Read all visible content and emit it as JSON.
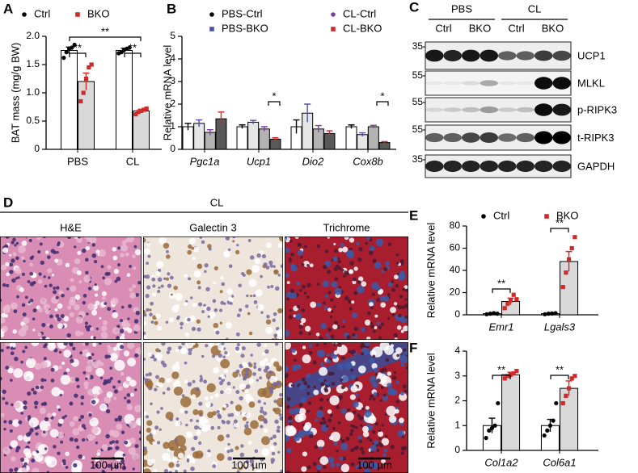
{
  "panel_labels": [
    "A",
    "B",
    "C",
    "D",
    "E",
    "F"
  ],
  "chart_data": [
    {
      "type": "bar",
      "ylabel": "BAT mass (mg/g BW)",
      "categories": [
        "PBS",
        "CL"
      ],
      "series": [
        {
          "name": "Ctrl",
          "color": "#000000",
          "bar_color": "#ffffff",
          "values": [
            1.75,
            1.75
          ],
          "errors": [
            0.06,
            0.04
          ],
          "points": [
            [
              1.62,
              1.72,
              1.78,
              1.8,
              1.85
            ],
            [
              1.7,
              1.72,
              1.76,
              1.78,
              1.8
            ]
          ]
        },
        {
          "name": "BKO",
          "color": "#d62728",
          "bar_color": "#d9d9d9",
          "values": [
            1.2,
            0.68
          ],
          "errors": [
            0.15,
            0.03
          ],
          "points": [
            [
              0.85,
              1.0,
              1.25,
              1.45,
              1.5
            ],
            [
              0.62,
              0.66,
              0.68,
              0.7,
              0.72
            ]
          ]
        }
      ],
      "ylim": [
        0,
        2
      ],
      "yticks": [
        0,
        0.5,
        {
          "value": 1,
          "label": "1.0"
        },
        1.5,
        {
          "value": 2,
          "label": "2.0"
        }
      ],
      "annotations": [
        "**",
        "**",
        "**"
      ]
    },
    {
      "type": "bar",
      "ylabel": "Relative mRNA level",
      "categories": [
        "Pgc1a",
        "Ucp1",
        "Dio2",
        "Cox8b"
      ],
      "series": [
        {
          "name": "PBS-Ctrl",
          "color": "#000000",
          "bar_color": "#ffffff",
          "values": [
            1.0,
            1.0,
            1.0,
            1.0
          ],
          "errors": [
            0.15,
            0.08,
            0.3,
            0.08
          ]
        },
        {
          "name": "PBS-BKO",
          "color": "#4b4fa8",
          "bar_color": "#e6e6e6",
          "values": [
            1.15,
            1.2,
            1.6,
            0.65
          ],
          "errors": [
            0.15,
            0.08,
            0.4,
            0.08
          ]
        },
        {
          "name": "CL-Ctrl",
          "color": "#7b3fa0",
          "bar_color": "#b3b3b3",
          "values": [
            0.75,
            0.9,
            0.9,
            1.0
          ],
          "errors": [
            0.12,
            0.1,
            0.15,
            0.06
          ]
        },
        {
          "name": "CL-BKO",
          "color": "#d62728",
          "bar_color": "#595959",
          "values": [
            1.35,
            0.45,
            0.7,
            0.3
          ],
          "errors": [
            0.3,
            0.06,
            0.12,
            0.04
          ]
        }
      ],
      "ylim": [
        0,
        5
      ],
      "yticks": [
        0,
        1,
        2,
        3,
        4,
        5
      ],
      "annotations": [
        "*",
        "*"
      ]
    },
    {
      "type": "bar",
      "ylabel": "Relative mRNA level",
      "categories": [
        "Emr1",
        "Lgals3"
      ],
      "series": [
        {
          "name": "Ctrl",
          "color": "#000000",
          "bar_color": "#ffffff",
          "values": [
            1,
            1
          ],
          "errors": [
            0.3,
            0.3
          ],
          "points": [
            [
              0.5,
              1,
              1.5,
              1
            ],
            [
              0.5,
              1,
              1.2,
              1.5
            ]
          ]
        },
        {
          "name": "BKO",
          "color": "#d62728",
          "bar_color": "#d9d9d9",
          "values": [
            12,
            48
          ],
          "errors": [
            3,
            9
          ],
          "points": [
            [
              6,
              10,
              13,
              18,
              14
            ],
            [
              25,
              38,
              50,
              60,
              70
            ]
          ]
        }
      ],
      "ylim": [
        0,
        80
      ],
      "yticks": [
        0,
        20,
        40,
        60,
        80
      ],
      "annotations": [
        "**",
        "**"
      ]
    },
    {
      "type": "bar",
      "ylabel": "Relative mRNA level",
      "categories": [
        "Col1a2",
        "Col6a1"
      ],
      "series": [
        {
          "color": "#000000",
          "bar_color": "#ffffff",
          "values": [
            1,
            1
          ],
          "errors": [
            0.3,
            0.25
          ],
          "points": [
            [
              0.5,
              0.8,
              0.9,
              1.0,
              1.9
            ],
            [
              0.6,
              0.8,
              1.0,
              1.2,
              1.9
            ]
          ]
        },
        {
          "color": "#d62728",
          "bar_color": "#d9d9d9",
          "values": [
            3.05,
            2.5
          ],
          "errors": [
            0.1,
            0.3
          ],
          "points": [
            [
              2.9,
              3.0,
              3.05,
              3.1,
              3.2
            ],
            [
              1.9,
              2.2,
              2.5,
              2.9,
              3.0
            ]
          ]
        }
      ],
      "ylim": [
        0,
        4
      ],
      "yticks": [
        0,
        1,
        2,
        3,
        4
      ],
      "annotations": [
        "**",
        "**"
      ]
    }
  ],
  "blot": {
    "groups": [
      "PBS",
      "CL"
    ],
    "lanes": [
      "Ctrl",
      "BKO",
      "Ctrl",
      "BKO"
    ],
    "proteins": [
      "UCP1",
      "MLKL",
      "p-RIPK3",
      "t-RIPK3",
      "GAPDH"
    ],
    "mw_markers": [
      "35",
      "55",
      "55",
      "55",
      "35"
    ]
  },
  "histology": {
    "group": "CL",
    "columns": [
      "H&E",
      "Galectin 3",
      "Trichrome"
    ],
    "scale_bars": [
      "100 µm",
      "100 µm",
      "100 µm"
    ]
  }
}
